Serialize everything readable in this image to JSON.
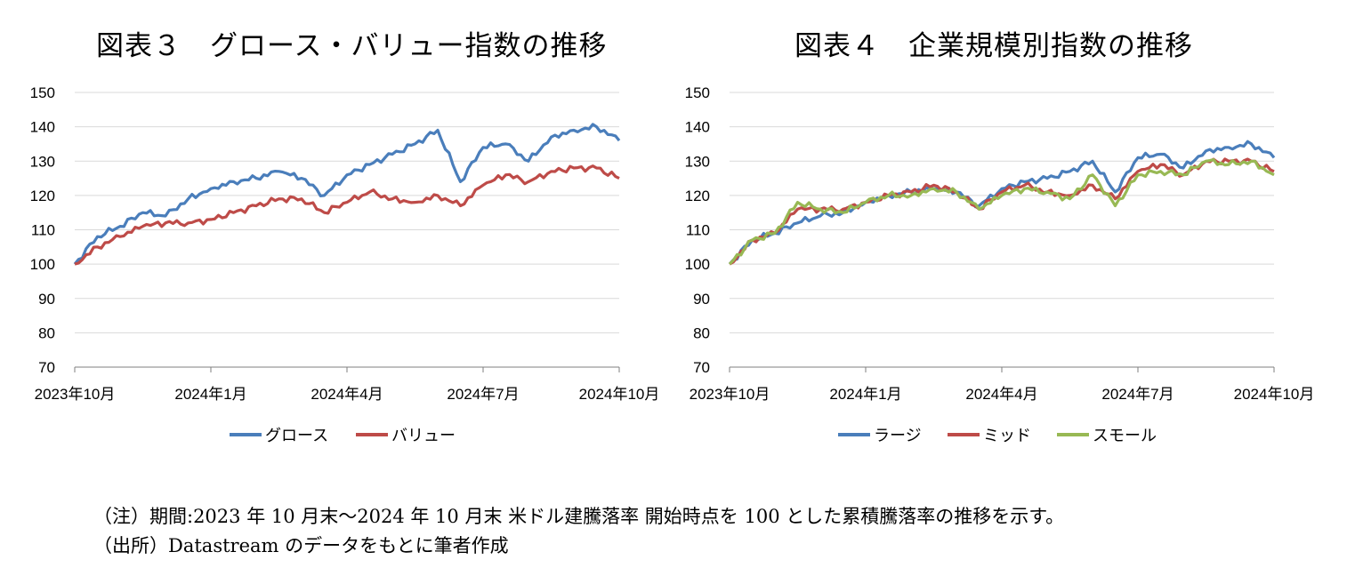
{
  "figures": {
    "left_title": "図表３　グロース・バリュー指数の推移",
    "right_title": "図表４　企業規模別指数の推移"
  },
  "notes": {
    "line1": "（注）期間:2023 年 10 月末～2024 年 10 月末 米ドル建騰落率 開始時点を 100 とした累積騰落率の推移を示す。",
    "line2": "（出所）Datastream のデータをもとに筆者作成"
  },
  "colors": {
    "blue": "#4a7ebb",
    "red": "#be4b48",
    "green": "#98b954",
    "grid": "#d9d9d9",
    "axis": "#7f7f7f"
  },
  "chart_data": [
    {
      "type": "line",
      "title": "図表３　グロース・バリュー指数の推移",
      "x_labels": [
        "2023年10月",
        "2024年1月",
        "2024年4月",
        "2024年7月",
        "2024年10月"
      ],
      "x": [
        0,
        0.5,
        1,
        1.5,
        2,
        2.5,
        3,
        3.5,
        4,
        4.5,
        5,
        5.5,
        6,
        6.5,
        7,
        7.5,
        8,
        8.5,
        9,
        9.5,
        10,
        10.5,
        11,
        11.5,
        12
      ],
      "ylim": [
        70,
        150
      ],
      "yticks": [
        70,
        80,
        90,
        100,
        110,
        120,
        130,
        140,
        150
      ],
      "series": [
        {
          "name": "グロース",
          "color": "#4a7ebb",
          "values": [
            100,
            108,
            111,
            115,
            114,
            119,
            122,
            124,
            125,
            127,
            125,
            120,
            126,
            129,
            132,
            135,
            139,
            124,
            134,
            135,
            130,
            137,
            139,
            140,
            136
          ]
        },
        {
          "name": "バリュー",
          "color": "#be4b48",
          "values": [
            100,
            105,
            108,
            111,
            112,
            112,
            113,
            115,
            117,
            119,
            119,
            115,
            118,
            121,
            119,
            118,
            120,
            117,
            123,
            126,
            124,
            127,
            128,
            128,
            125
          ]
        }
      ]
    },
    {
      "type": "line",
      "title": "図表４　企業規模別指数の推移",
      "x_labels": [
        "2023年10月",
        "2024年1月",
        "2024年4月",
        "2024年7月",
        "2024年10月"
      ],
      "x": [
        0,
        0.5,
        1,
        1.5,
        2,
        2.5,
        3,
        3.5,
        4,
        4.5,
        5,
        5.5,
        6,
        6.5,
        7,
        7.5,
        8,
        8.5,
        9,
        9.5,
        10,
        10.5,
        11,
        11.5,
        12
      ],
      "ylim": [
        70,
        150
      ],
      "yticks": [
        70,
        80,
        90,
        100,
        110,
        120,
        130,
        140,
        150
      ],
      "series": [
        {
          "name": "ラージ",
          "color": "#4a7ebb",
          "values": [
            100,
            107,
            109,
            112,
            114,
            115,
            118,
            120,
            121,
            122,
            121,
            117,
            122,
            124,
            125,
            127,
            130,
            121,
            131,
            132,
            128,
            133,
            134,
            135,
            131
          ]
        },
        {
          "name": "ミッド",
          "color": "#be4b48",
          "values": [
            100,
            107,
            109,
            116,
            116,
            116,
            118,
            120,
            121,
            123,
            121,
            116,
            121,
            123,
            121,
            120,
            123,
            119,
            127,
            129,
            126,
            130,
            130,
            130,
            127
          ]
        },
        {
          "name": "スモール",
          "color": "#98b954",
          "values": [
            100,
            107,
            109,
            118,
            116,
            115,
            118,
            120,
            120,
            122,
            121,
            116,
            120,
            122,
            121,
            119,
            126,
            117,
            126,
            127,
            126,
            130,
            129,
            130,
            126
          ]
        }
      ]
    }
  ]
}
